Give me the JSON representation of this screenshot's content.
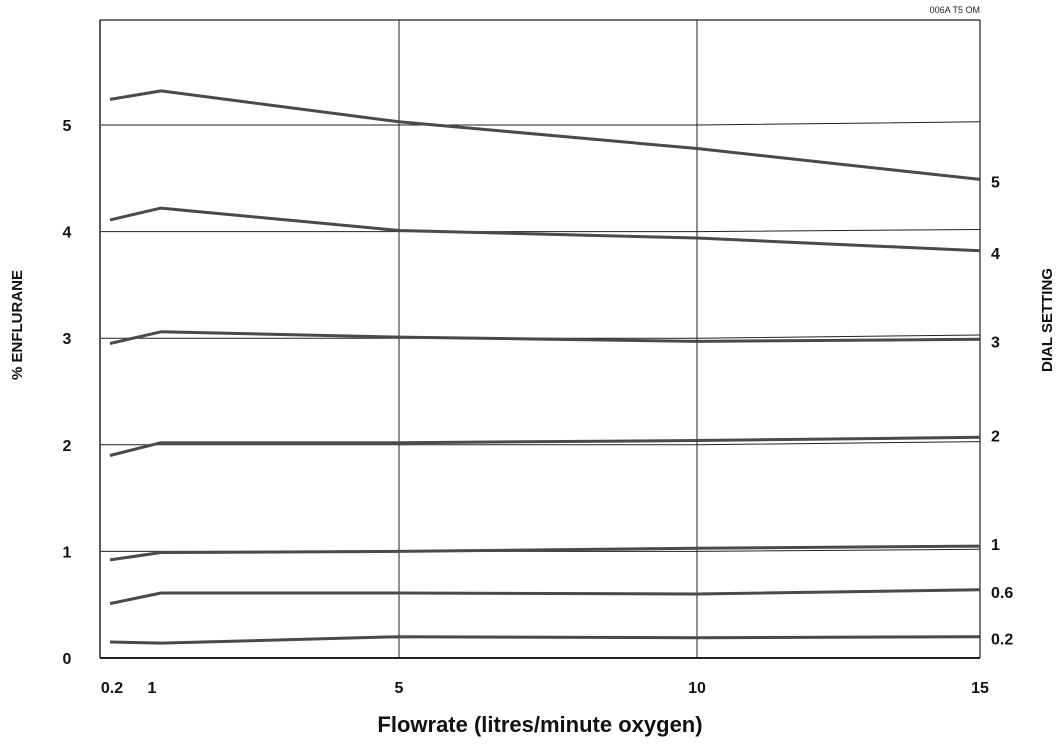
{
  "chart_data": {
    "type": "line",
    "code_label": "006A T5 OM",
    "xlabel": "Flowrate (litres/minute oxygen)",
    "ylabel": "% ENFLURANE",
    "y2label": "DIAL SETTING",
    "x_ticks": [
      "0.2",
      "1",
      "5",
      "10",
      "15"
    ],
    "x_tick_values": [
      0.2,
      1,
      5,
      10,
      15
    ],
    "y_ticks": [
      "0",
      "1",
      "2",
      "3",
      "4",
      "5"
    ],
    "y_tick_values": [
      0,
      1,
      2,
      3,
      4,
      5
    ],
    "xlim": [
      0,
      15
    ],
    "ylim": [
      0,
      5.6
    ],
    "x": [
      0.2,
      1,
      5,
      10,
      15
    ],
    "series": [
      {
        "name": "5",
        "values": [
          5.24,
          5.32,
          5.03,
          4.78,
          4.49
        ]
      },
      {
        "name": "4",
        "values": [
          4.11,
          4.22,
          4.01,
          3.94,
          3.82
        ]
      },
      {
        "name": "3",
        "values": [
          2.95,
          3.06,
          3.01,
          2.97,
          2.99
        ]
      },
      {
        "name": "2",
        "values": [
          1.9,
          2.02,
          2.02,
          2.04,
          2.07
        ]
      },
      {
        "name": "1",
        "values": [
          0.92,
          0.99,
          1.0,
          1.03,
          1.05
        ]
      },
      {
        "name": "0.6",
        "values": [
          0.51,
          0.61,
          0.61,
          0.6,
          0.64
        ]
      },
      {
        "name": "0.2",
        "values": [
          0.15,
          0.14,
          0.2,
          0.19,
          0.2
        ]
      }
    ],
    "reference_lines": [
      {
        "name": "1",
        "values": [
          1.0,
          1.0,
          1.0,
          1.0,
          1.02
        ]
      },
      {
        "name": "2",
        "values": [
          2.0,
          2.0,
          2.0,
          2.0,
          2.03
        ]
      },
      {
        "name": "3",
        "values": [
          3.0,
          3.0,
          3.0,
          3.0,
          3.03
        ]
      },
      {
        "name": "4",
        "values": [
          4.0,
          4.0,
          4.0,
          4.0,
          4.02
        ]
      },
      {
        "name": "5",
        "values": [
          5.0,
          5.0,
          5.0,
          5.0,
          5.03
        ]
      }
    ],
    "grid": "vertical lines at 5 and 10",
    "line_color": "#4a4a4a"
  }
}
